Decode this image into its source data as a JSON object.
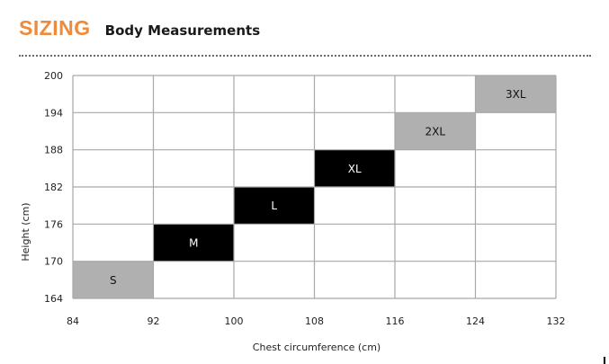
{
  "header": {
    "brand": "SIZING",
    "subtitle": "Body Measurements"
  },
  "colors": {
    "brand": "#ef8a3a",
    "grid": "#a8a8a8",
    "cell_gray": "#b0b0b0",
    "cell_black": "#000000"
  },
  "chart_data": {
    "type": "heatmap",
    "title": "",
    "xlabel": "Chest circumference (cm)",
    "ylabel": "Height (cm)",
    "xlim": [
      84,
      132
    ],
    "ylim": [
      164,
      200
    ],
    "x_ticks": [
      84,
      92,
      100,
      108,
      116,
      124,
      132
    ],
    "y_ticks": [
      164,
      170,
      176,
      182,
      188,
      194,
      200
    ],
    "grid": true,
    "sizes": [
      {
        "label": "S",
        "chest": [
          84,
          92
        ],
        "height": [
          164,
          170
        ],
        "color": "#b0b0b0",
        "text_color": "#111111"
      },
      {
        "label": "M",
        "chest": [
          92,
          100
        ],
        "height": [
          170,
          176
        ],
        "color": "#000000",
        "text_color": "#ffffff"
      },
      {
        "label": "L",
        "chest": [
          100,
          108
        ],
        "height": [
          176,
          182
        ],
        "color": "#000000",
        "text_color": "#ffffff"
      },
      {
        "label": "XL",
        "chest": [
          108,
          116
        ],
        "height": [
          182,
          188
        ],
        "color": "#000000",
        "text_color": "#ffffff"
      },
      {
        "label": "2XL",
        "chest": [
          116,
          124
        ],
        "height": [
          188,
          194
        ],
        "color": "#b0b0b0",
        "text_color": "#111111"
      },
      {
        "label": "3XL",
        "chest": [
          124,
          132
        ],
        "height": [
          194,
          200
        ],
        "color": "#b0b0b0",
        "text_color": "#111111"
      }
    ]
  }
}
